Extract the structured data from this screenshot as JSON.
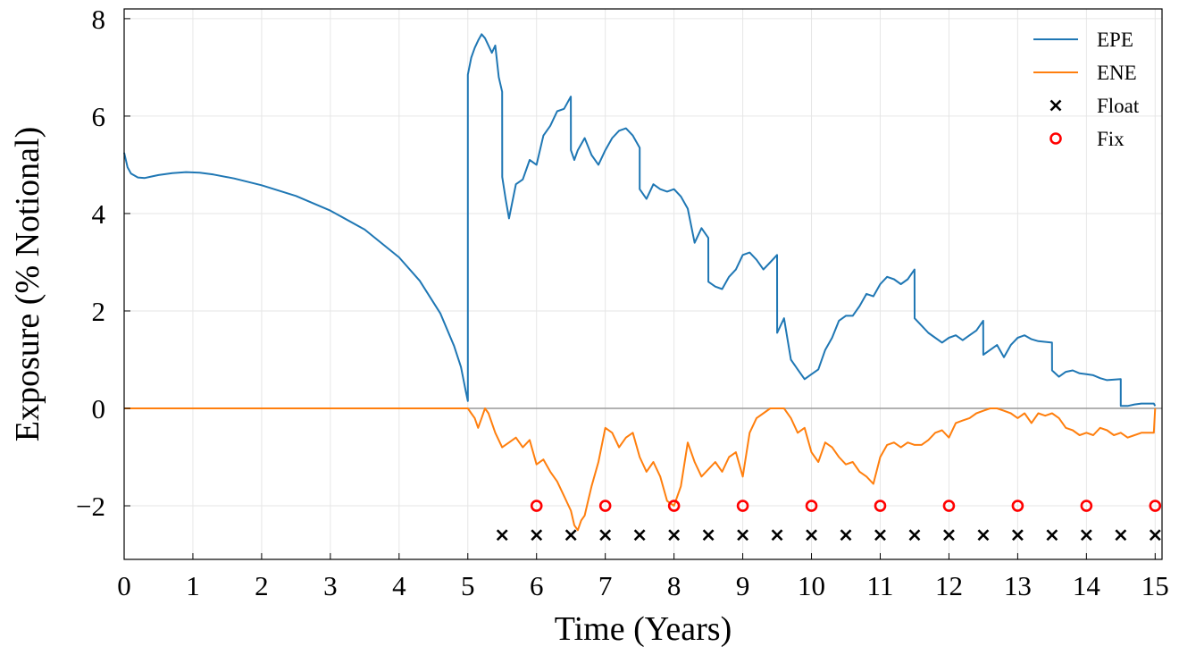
{
  "chart_data": {
    "type": "line",
    "title": "",
    "xlabel": "Time (Years)",
    "ylabel": "Exposure (% Notional)",
    "xlim": [
      0,
      15.1
    ],
    "ylim": [
      -3.1,
      8.2
    ],
    "grid": true,
    "legend_position": "top-right",
    "x_ticks": [
      0,
      1,
      2,
      3,
      4,
      5,
      6,
      7,
      8,
      9,
      10,
      11,
      12,
      13,
      14,
      15
    ],
    "x_tick_labels": [
      "0",
      "1",
      "2",
      "3",
      "4",
      "5",
      "6",
      "7",
      "8",
      "9",
      "10",
      "11",
      "12",
      "13",
      "14",
      "15"
    ],
    "y_ticks": [
      -2,
      0,
      2,
      4,
      6,
      8
    ],
    "y_tick_labels": [
      "−2",
      "0",
      "2",
      "4",
      "6",
      "8"
    ],
    "colors": {
      "EPE": "#1f77b4",
      "ENE": "#ff7f0e",
      "Float": "#000000",
      "Fix": "#ff0000",
      "zero_line": "#999999"
    },
    "series": [
      {
        "name": "EPE",
        "kind": "line",
        "x": [
          0,
          0.05,
          0.1,
          0.2,
          0.3,
          0.4,
          0.5,
          0.7,
          0.9,
          1.1,
          1.3,
          1.6,
          2.0,
          2.5,
          3.0,
          3.5,
          4.0,
          4.3,
          4.6,
          4.8,
          4.9,
          4.97,
          5.0,
          5.001,
          5.05,
          5.1,
          5.15,
          5.2,
          5.25,
          5.3,
          5.35,
          5.4,
          5.45,
          5.5,
          5.501,
          5.55,
          5.6,
          5.7,
          5.8,
          5.9,
          6.0,
          6.1,
          6.2,
          6.3,
          6.4,
          6.499,
          6.5,
          6.55,
          6.6,
          6.7,
          6.8,
          6.9,
          7.0,
          7.1,
          7.2,
          7.3,
          7.4,
          7.5,
          7.501,
          7.6,
          7.7,
          7.8,
          7.9,
          8.0,
          8.1,
          8.2,
          8.3,
          8.4,
          8.499,
          8.5,
          8.6,
          8.7,
          8.8,
          8.9,
          9.0,
          9.1,
          9.2,
          9.3,
          9.4,
          9.499,
          9.5,
          9.6,
          9.7,
          9.8,
          9.9,
          10.0,
          10.1,
          10.2,
          10.3,
          10.4,
          10.5,
          10.6,
          10.7,
          10.8,
          10.9,
          11.0,
          11.1,
          11.2,
          11.3,
          11.4,
          11.499,
          11.5,
          11.6,
          11.7,
          11.8,
          11.9,
          12.0,
          12.1,
          12.2,
          12.3,
          12.4,
          12.499,
          12.5,
          12.6,
          12.7,
          12.8,
          12.9,
          13.0,
          13.1,
          13.2,
          13.3,
          13.499,
          13.5,
          13.6,
          13.7,
          13.8,
          13.9,
          14.0,
          14.1,
          14.2,
          14.3,
          14.499,
          14.5,
          14.6,
          14.7,
          14.8,
          14.9,
          14.98,
          15.0
        ],
        "y": [
          5.25,
          4.95,
          4.82,
          4.74,
          4.73,
          4.76,
          4.79,
          4.83,
          4.85,
          4.84,
          4.8,
          4.72,
          4.58,
          4.36,
          4.06,
          3.67,
          3.1,
          2.62,
          1.95,
          1.28,
          0.85,
          0.35,
          0.15,
          6.85,
          7.2,
          7.4,
          7.55,
          7.68,
          7.6,
          7.45,
          7.3,
          7.45,
          6.8,
          6.5,
          4.75,
          4.3,
          3.9,
          4.6,
          4.7,
          5.1,
          5.0,
          5.6,
          5.8,
          6.1,
          6.15,
          6.4,
          5.3,
          5.1,
          5.3,
          5.55,
          5.2,
          5.0,
          5.3,
          5.55,
          5.7,
          5.75,
          5.6,
          5.35,
          4.5,
          4.3,
          4.6,
          4.5,
          4.45,
          4.5,
          4.35,
          4.1,
          3.4,
          3.7,
          3.5,
          2.6,
          2.5,
          2.45,
          2.7,
          2.85,
          3.15,
          3.2,
          3.05,
          2.85,
          3.0,
          3.15,
          1.55,
          1.85,
          1.0,
          0.8,
          0.6,
          0.7,
          0.8,
          1.2,
          1.45,
          1.8,
          1.9,
          1.9,
          2.1,
          2.35,
          2.3,
          2.55,
          2.7,
          2.65,
          2.55,
          2.65,
          2.85,
          1.85,
          1.7,
          1.55,
          1.45,
          1.35,
          1.45,
          1.5,
          1.4,
          1.5,
          1.6,
          1.8,
          1.1,
          1.2,
          1.3,
          1.05,
          1.3,
          1.45,
          1.5,
          1.42,
          1.38,
          1.35,
          0.78,
          0.65,
          0.75,
          0.78,
          0.72,
          0.7,
          0.68,
          0.62,
          0.58,
          0.6,
          0.05,
          0.05,
          0.08,
          0.1,
          0.1,
          0.1,
          0.05
        ]
      },
      {
        "name": "ENE",
        "kind": "line",
        "x": [
          0,
          5.0,
          5.05,
          5.1,
          5.15,
          5.2,
          5.25,
          5.3,
          5.4,
          5.5,
          5.6,
          5.7,
          5.8,
          5.9,
          6.0,
          6.1,
          6.2,
          6.3,
          6.4,
          6.5,
          6.55,
          6.6,
          6.65,
          6.7,
          6.75,
          6.8,
          6.9,
          7.0,
          7.1,
          7.2,
          7.3,
          7.4,
          7.5,
          7.6,
          7.7,
          7.8,
          7.9,
          8.0,
          8.1,
          8.2,
          8.3,
          8.4,
          8.5,
          8.6,
          8.7,
          8.8,
          8.9,
          9.0,
          9.1,
          9.2,
          9.3,
          9.4,
          9.5,
          9.6,
          9.7,
          9.8,
          9.9,
          10.0,
          10.1,
          10.2,
          10.3,
          10.4,
          10.5,
          10.6,
          10.7,
          10.8,
          10.9,
          11.0,
          11.1,
          11.2,
          11.3,
          11.4,
          11.5,
          11.6,
          11.7,
          11.8,
          11.9,
          12.0,
          12.1,
          12.2,
          12.3,
          12.4,
          12.5,
          12.6,
          12.7,
          12.8,
          12.9,
          13.0,
          13.1,
          13.2,
          13.3,
          13.4,
          13.5,
          13.6,
          13.7,
          13.8,
          13.9,
          14.0,
          14.1,
          14.2,
          14.3,
          14.4,
          14.5,
          14.6,
          14.7,
          14.8,
          14.9,
          14.98,
          15.0
        ],
        "y": [
          0.0,
          0.0,
          -0.1,
          -0.2,
          -0.4,
          -0.2,
          0.0,
          -0.1,
          -0.5,
          -0.8,
          -0.7,
          -0.6,
          -0.8,
          -0.65,
          -1.15,
          -1.05,
          -1.3,
          -1.5,
          -1.8,
          -2.1,
          -2.4,
          -2.5,
          -2.3,
          -2.2,
          -1.9,
          -1.6,
          -1.1,
          -0.4,
          -0.5,
          -0.8,
          -0.6,
          -0.5,
          -1.0,
          -1.3,
          -1.1,
          -1.4,
          -1.9,
          -2.0,
          -1.6,
          -0.7,
          -1.1,
          -1.4,
          -1.25,
          -1.1,
          -1.3,
          -1.0,
          -0.9,
          -1.4,
          -0.5,
          -0.2,
          -0.1,
          0.0,
          0.0,
          0.0,
          -0.2,
          -0.5,
          -0.4,
          -0.9,
          -1.1,
          -0.7,
          -0.8,
          -1.0,
          -1.15,
          -1.1,
          -1.3,
          -1.4,
          -1.55,
          -1.0,
          -0.75,
          -0.7,
          -0.8,
          -0.7,
          -0.75,
          -0.75,
          -0.65,
          -0.5,
          -0.45,
          -0.6,
          -0.3,
          -0.25,
          -0.2,
          -0.1,
          -0.05,
          0.0,
          0.0,
          -0.05,
          -0.1,
          -0.2,
          -0.1,
          -0.3,
          -0.1,
          -0.15,
          -0.1,
          -0.2,
          -0.4,
          -0.45,
          -0.55,
          -0.5,
          -0.55,
          -0.4,
          -0.45,
          -0.55,
          -0.5,
          -0.6,
          -0.55,
          -0.5,
          -0.5,
          -0.5,
          0.0
        ]
      },
      {
        "name": "Float",
        "kind": "scatter",
        "marker": "x",
        "x": [
          5.5,
          6.0,
          6.5,
          7.0,
          7.5,
          8.0,
          8.5,
          9.0,
          9.5,
          10.0,
          10.5,
          11.0,
          11.5,
          12.0,
          12.5,
          13.0,
          13.5,
          14.0,
          14.5,
          15.0
        ],
        "y": [
          -2.6,
          -2.6,
          -2.6,
          -2.6,
          -2.6,
          -2.6,
          -2.6,
          -2.6,
          -2.6,
          -2.6,
          -2.6,
          -2.6,
          -2.6,
          -2.6,
          -2.6,
          -2.6,
          -2.6,
          -2.6,
          -2.6,
          -2.6
        ]
      },
      {
        "name": "Fix",
        "kind": "scatter",
        "marker": "o",
        "x": [
          6,
          7,
          8,
          9,
          10,
          11,
          12,
          13,
          14,
          15
        ],
        "y": [
          -2.0,
          -2.0,
          -2.0,
          -2.0,
          -2.0,
          -2.0,
          -2.0,
          -2.0,
          -2.0,
          -2.0
        ]
      }
    ],
    "legend": [
      {
        "label": "EPE",
        "icon": "line",
        "color": "#1f77b4"
      },
      {
        "label": "ENE",
        "icon": "line",
        "color": "#ff7f0e"
      },
      {
        "label": "Float",
        "icon": "x-marker",
        "color": "#000000"
      },
      {
        "label": "Fix",
        "icon": "circle-marker",
        "color": "#ff0000"
      }
    ]
  }
}
